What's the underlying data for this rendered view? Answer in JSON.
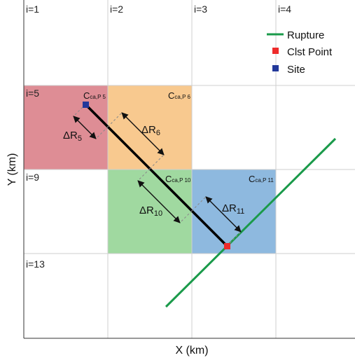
{
  "axes": {
    "xlabel": "X (km)",
    "ylabel": "Y (km)"
  },
  "grid_labels": [
    "i=1",
    "i=2",
    "i=3",
    "i=4",
    "i=5",
    "i=9",
    "i=13"
  ],
  "cells": [
    {
      "id": "p5",
      "label": "C",
      "sub": "ca,P 5",
      "color": "#de8d95"
    },
    {
      "id": "p6",
      "label": "C",
      "sub": "ca,P 6",
      "color": "#f8c98f"
    },
    {
      "id": "p10",
      "label": "C",
      "sub": "ca,P 10",
      "color": "#a0d9a0"
    },
    {
      "id": "p11",
      "label": "C",
      "sub": "ca,P 11",
      "color": "#8eb9df"
    }
  ],
  "distance_labels": [
    {
      "base": "ΔR",
      "sub": "5"
    },
    {
      "base": "ΔR",
      "sub": "6"
    },
    {
      "base": "ΔR",
      "sub": "10"
    },
    {
      "base": "ΔR",
      "sub": "11"
    }
  ],
  "legend": [
    {
      "label": "Rupture",
      "color": "#1a9a4a",
      "symbol": "line"
    },
    {
      "label": "Clst Point",
      "color": "#ee2b2b",
      "symbol": "square"
    },
    {
      "label": "Site",
      "color": "#22389a",
      "symbol": "square"
    }
  ]
}
